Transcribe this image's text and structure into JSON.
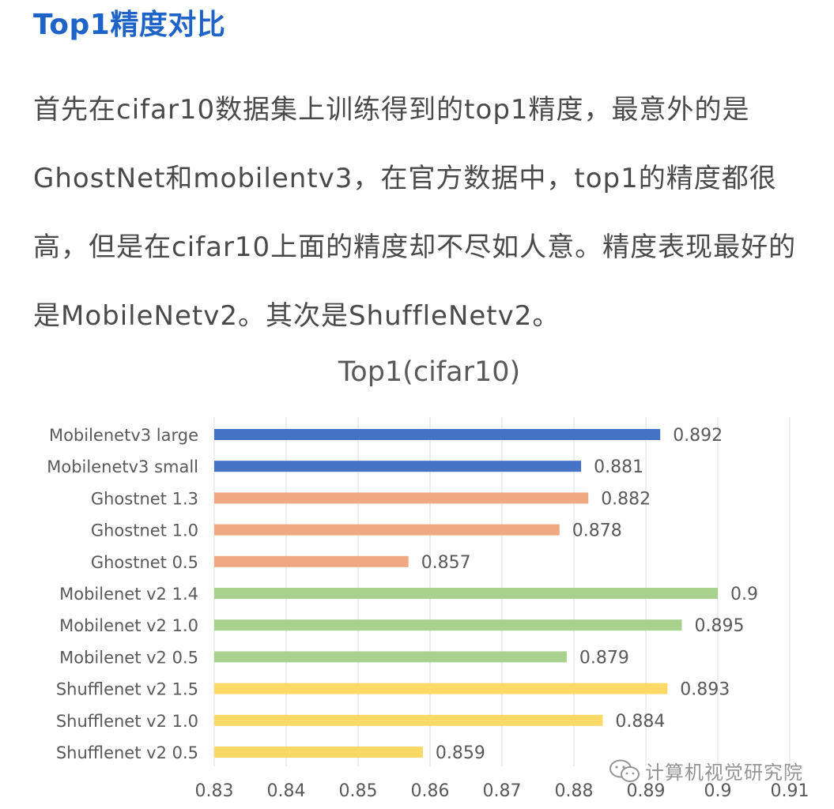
{
  "article": {
    "heading": "Top1精度对比",
    "paragraph": "首先在cifar10数据集上训练得到的top1精度，最意外的是GhostNet和mobilentv3，在官方数据中，top1的精度都很高，但是在cifar10上面的精度却不尽如人意。精度表现最好的是MobileNetv2。其次是ShuffleNetv2。"
  },
  "watermark": {
    "text": "计算机视觉研究院",
    "icon": "wechat-icon"
  },
  "chart_data": {
    "type": "bar",
    "orientation": "horizontal",
    "title": "Top1(cifar10)",
    "xlabel": "",
    "ylabel": "",
    "xlim": [
      0.83,
      0.91
    ],
    "x_ticks": [
      "0.83",
      "0.84",
      "0.85",
      "0.86",
      "0.87",
      "0.88",
      "0.89",
      "0.9",
      "0.91"
    ],
    "grid": "vertical",
    "categories": [
      "Mobilenetv3 large",
      "Mobilenetv3 small",
      "Ghostnet 1.3",
      "Ghostnet 1.0",
      "Ghostnet 0.5",
      "Mobilenet v2 1.4",
      "Mobilenet v2 1.0",
      "Mobilenet v2 0.5",
      "Shufflenet v2 1.5",
      "Shufflenet v2 1.0",
      "Shufflenet v2 0.5"
    ],
    "values": [
      0.892,
      0.881,
      0.882,
      0.878,
      0.857,
      0.9,
      0.895,
      0.879,
      0.893,
      0.884,
      0.859
    ],
    "value_labels": [
      "0.892",
      "0.881",
      "0.882",
      "0.878",
      "0.857",
      "0.9",
      "0.895",
      "0.879",
      "0.893",
      "0.884",
      "0.859"
    ],
    "bar_colors": [
      "#4472c4",
      "#4472c4",
      "#f0a882",
      "#f0a882",
      "#f0a882",
      "#a9d18e",
      "#a9d18e",
      "#a9d18e",
      "#ffd966",
      "#ffd966",
      "#ffd966"
    ]
  }
}
